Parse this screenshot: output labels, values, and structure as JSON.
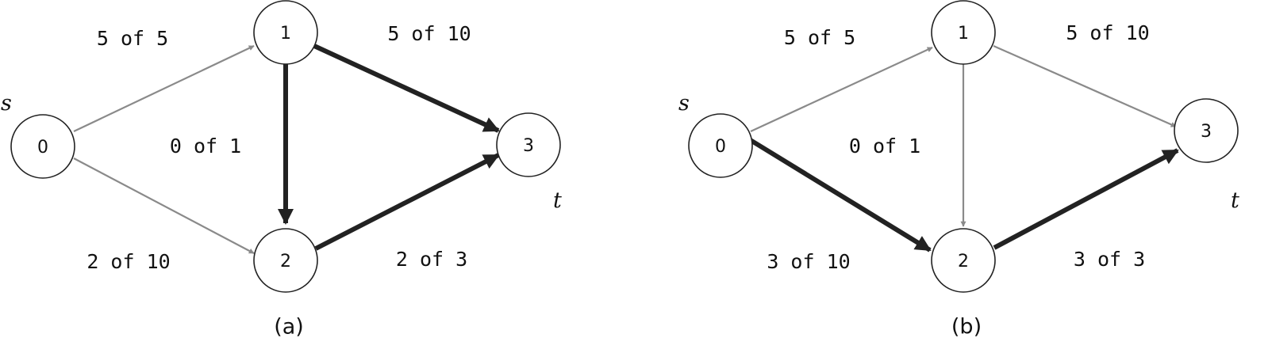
{
  "figure": {
    "panels": [
      {
        "id": "a",
        "caption": "(a)",
        "source_label": "s",
        "sink_label": "t",
        "nodes": [
          {
            "id": "0",
            "label": "0"
          },
          {
            "id": "1",
            "label": "1"
          },
          {
            "id": "2",
            "label": "2"
          },
          {
            "id": "3",
            "label": "3"
          }
        ],
        "edges": [
          {
            "from": "0",
            "to": "1",
            "label": "5 of 5",
            "highlight": false
          },
          {
            "from": "0",
            "to": "2",
            "label": "2 of 10",
            "highlight": false
          },
          {
            "from": "1",
            "to": "2",
            "label": "0 of 1",
            "highlight": true
          },
          {
            "from": "1",
            "to": "3",
            "label": "5 of 10",
            "highlight": true
          },
          {
            "from": "2",
            "to": "3",
            "label": "2 of 3",
            "highlight": true
          }
        ]
      },
      {
        "id": "b",
        "caption": "(b)",
        "source_label": "s",
        "sink_label": "t",
        "nodes": [
          {
            "id": "0",
            "label": "0"
          },
          {
            "id": "1",
            "label": "1"
          },
          {
            "id": "2",
            "label": "2"
          },
          {
            "id": "3",
            "label": "3"
          }
        ],
        "edges": [
          {
            "from": "0",
            "to": "1",
            "label": "5 of 5",
            "highlight": false
          },
          {
            "from": "0",
            "to": "2",
            "label": "3 of 10",
            "highlight": true
          },
          {
            "from": "1",
            "to": "2",
            "label": "0 of 1",
            "highlight": false
          },
          {
            "from": "1",
            "to": "3",
            "label": "5 of 10",
            "highlight": false
          },
          {
            "from": "2",
            "to": "3",
            "label": "3 of 3",
            "highlight": true
          }
        ]
      }
    ],
    "colors": {
      "thin_edge": "#8a8a8a",
      "thick_edge": "#222222",
      "node_stroke": "#222222"
    }
  }
}
